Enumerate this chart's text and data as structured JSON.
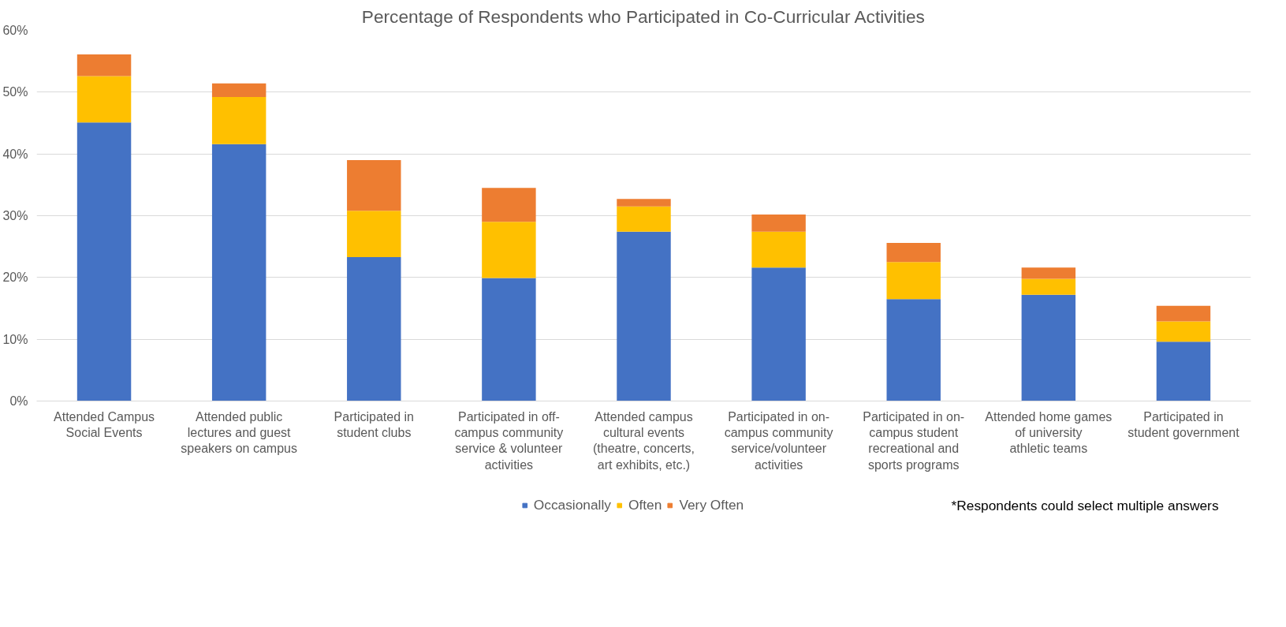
{
  "chart_data": {
    "type": "bar",
    "stacked": true,
    "title": "Percentage of Respondents who Participated in Co-Curricular Activities",
    "categories": [
      "Attended Campus Social Events",
      "Attended public lectures and guest speakers on campus",
      "Participated in student clubs",
      "Participated in off-campus community service & volunteer activities",
      "Attended campus cultural events (theatre, concerts, art exhibits, etc.)",
      "Participated in on-campus community service/volunteer activities",
      "Participated in on-campus student recreational and sports programs",
      "Attended home games of university athletic teams",
      "Participated in student government"
    ],
    "series": [
      {
        "name": "Occasionally",
        "color": "#4472c4",
        "values": [
          45.1,
          41.6,
          23.3,
          19.9,
          27.4,
          21.6,
          16.5,
          17.2,
          9.6
        ]
      },
      {
        "name": "Often",
        "color": "#ffc000",
        "values": [
          7.5,
          7.6,
          7.5,
          9.1,
          4.1,
          5.8,
          6.0,
          2.6,
          3.3
        ]
      },
      {
        "name": "Very Often",
        "color": "#ed7d31",
        "values": [
          3.5,
          2.2,
          8.2,
          5.5,
          1.2,
          2.8,
          3.1,
          1.8,
          2.5
        ]
      }
    ],
    "ylim": [
      0,
      60
    ],
    "yticks": [
      {
        "value": 0,
        "label": "0%"
      },
      {
        "value": 10,
        "label": "10%"
      },
      {
        "value": 20,
        "label": "20%"
      },
      {
        "value": 30,
        "label": "30%"
      },
      {
        "value": 40,
        "label": "40%"
      },
      {
        "value": 50,
        "label": "50%"
      },
      {
        "value": 60,
        "label": "60%"
      }
    ],
    "grid": "y",
    "legend": "bottom",
    "annotations": [
      "*Respondents could select multiple answers"
    ]
  }
}
